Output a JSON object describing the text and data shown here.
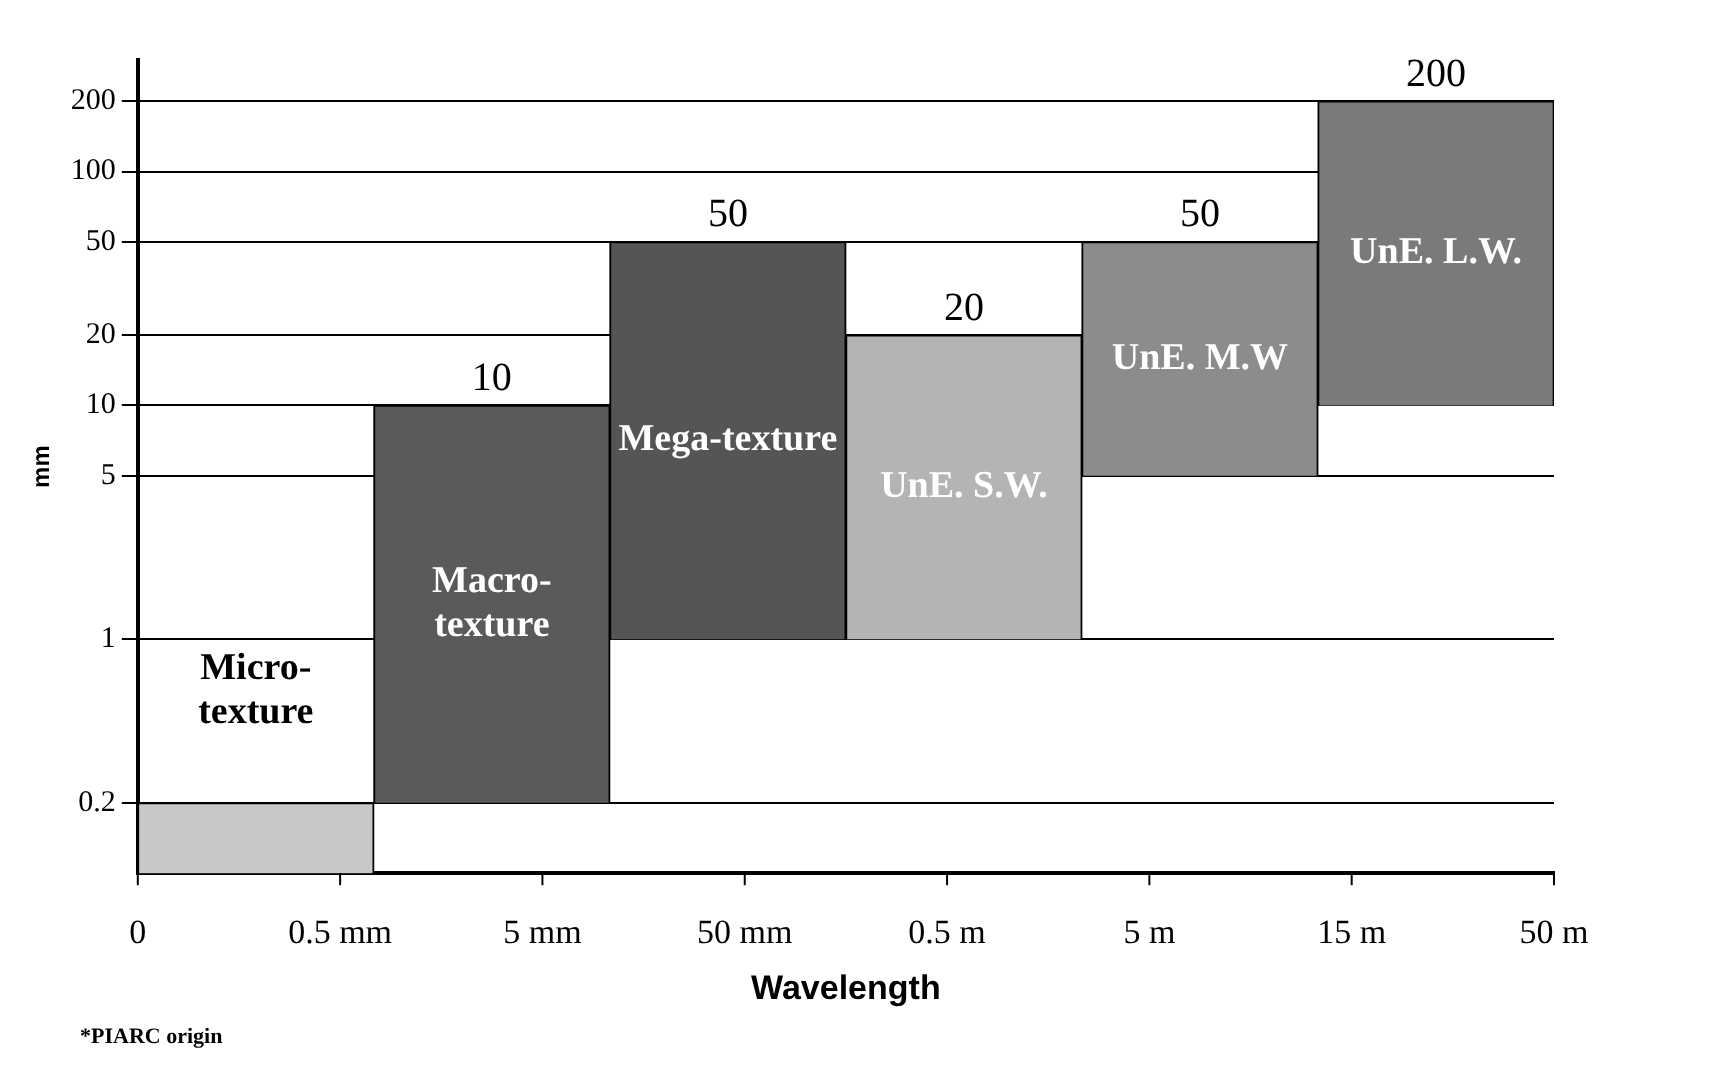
{
  "chart_data": {
    "type": "bar",
    "xlabel": "Wavelength",
    "ylabel": "mm",
    "categories": [
      null,
      null,
      null,
      null,
      null,
      null
    ],
    "base": [
      0.1,
      0.2,
      1,
      1,
      5,
      10
    ],
    "values": [
      0.1,
      9.8,
      49,
      19,
      45,
      190
    ],
    "colors": [
      "#c8c8c8",
      "#5a5a5a",
      "#555555",
      "#b4b4b4",
      "#8c8c8c",
      "#7a7a7a"
    ],
    "value_labels": [
      null,
      "10",
      "50",
      "20",
      "50",
      "200"
    ],
    "log": "y",
    "ylim": [
      0.1,
      300
    ],
    "yticks": [
      0.2,
      1,
      5,
      10,
      20,
      50,
      100,
      200
    ],
    "grid": "y",
    "annotations": [
      "Micro-texture",
      "Macro-texture",
      "Mega-texture",
      "UnE. S.W.",
      "UnE. M.W",
      "UnE. L.W.",
      "0",
      "0.5 mm",
      "5 mm",
      "50 mm",
      "0.5 m",
      "5 m",
      "15 m",
      "50 m",
      "*PIARC origin"
    ]
  }
}
